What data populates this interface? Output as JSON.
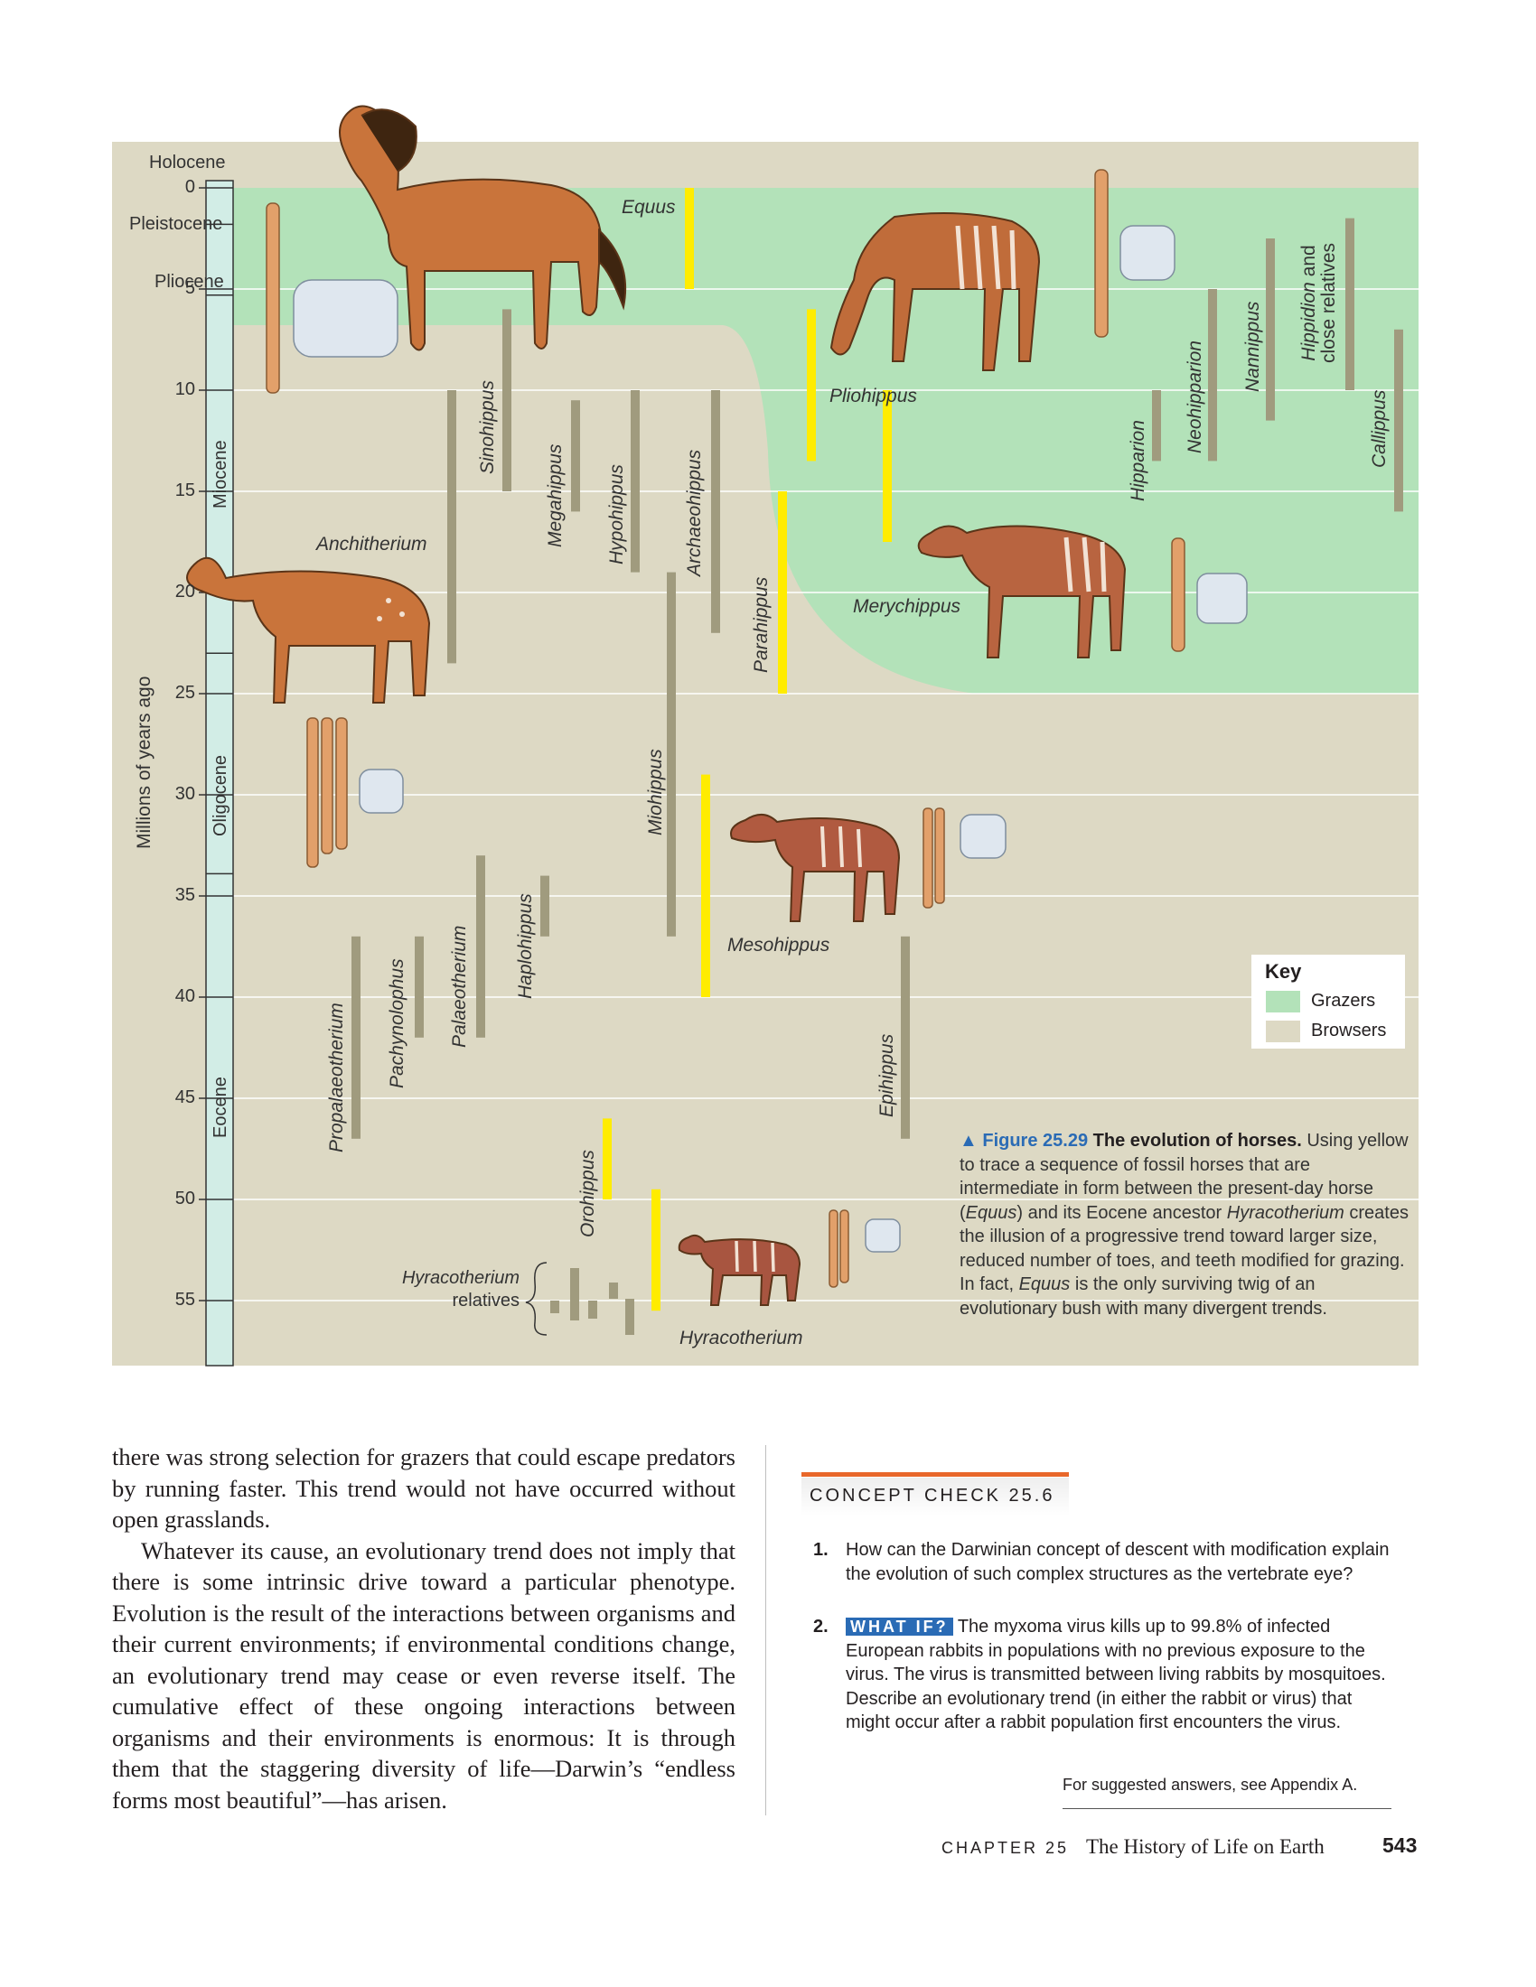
{
  "figure": {
    "y_axis_label": "Millions of years ago",
    "tick_values": [
      "0",
      "5",
      "10",
      "15",
      "20",
      "25",
      "30",
      "35",
      "40",
      "45",
      "50",
      "55"
    ],
    "epochs": {
      "holocene": "Holocene",
      "pleistocene": "Pleistocene",
      "pliocene": "Pliocene",
      "miocene": "Miocene",
      "oligocene": "Oligocene",
      "eocene": "Eocene"
    },
    "colors": {
      "grazers": "#b3e2b9",
      "browsers": "#ddd9c4",
      "trend": "#ffec00",
      "lineage": "#a09b7e",
      "timeline": "#d2ede6"
    },
    "genera": [
      {
        "name": "Equus",
        "start": 0,
        "end": 5,
        "yellow": true
      },
      {
        "name": "Pliohippus",
        "start": 6,
        "end": 13.5,
        "yellow": true
      },
      {
        "name": "Merychippus",
        "start": 10,
        "end": 17.5,
        "yellow": true
      },
      {
        "name": "Parahippus",
        "start": 15,
        "end": 25,
        "yellow": true
      },
      {
        "name": "Mesohippus",
        "start": 29,
        "end": 40,
        "yellow": true
      },
      {
        "name": "Orohippus",
        "start": 46,
        "end": 50,
        "yellow": true
      },
      {
        "name": "Hyracotherium",
        "start": 49.5,
        "end": 55.5,
        "yellow": true
      },
      {
        "name": "Anchitherium",
        "start": 10,
        "end": 23.5,
        "yellow": false
      },
      {
        "name": "Sinohippus",
        "start": 6,
        "end": 15,
        "yellow": false
      },
      {
        "name": "Megahippus",
        "start": 10.5,
        "end": 16,
        "yellow": false
      },
      {
        "name": "Hypohippus",
        "start": 10,
        "end": 19,
        "yellow": false
      },
      {
        "name": "Archaeohippus",
        "start": 10,
        "end": 22,
        "yellow": false
      },
      {
        "name": "Miohippus",
        "start": 19,
        "end": 37,
        "yellow": false
      },
      {
        "name": "Propalaeotherium",
        "start": 37,
        "end": 47,
        "yellow": false
      },
      {
        "name": "Pachynolophus",
        "start": 37,
        "end": 42,
        "yellow": false
      },
      {
        "name": "Palaeotherium",
        "start": 33,
        "end": 42,
        "yellow": false
      },
      {
        "name": "Haplohippus",
        "start": 34,
        "end": 37,
        "yellow": false
      },
      {
        "name": "Epihippus",
        "start": 37,
        "end": 47,
        "yellow": false
      },
      {
        "name": "Hipparion",
        "start": 10,
        "end": 13.5,
        "yellow": false
      },
      {
        "name": "Neohipparion",
        "start": 5,
        "end": 13.5,
        "yellow": false
      },
      {
        "name": "Nannippus",
        "start": 2.5,
        "end": 11.5,
        "yellow": false
      },
      {
        "name": "Hippidion and close relatives",
        "start": 1.5,
        "end": 10,
        "yellow": false
      },
      {
        "name": "Callippus",
        "start": 7,
        "end": 16,
        "yellow": false
      }
    ],
    "hyracotherium_relatives": "Hyracotherium relatives",
    "key": {
      "title": "Key",
      "grazers": "Grazers",
      "browsers": "Browsers"
    },
    "caption": {
      "figure_number": "▲ Figure 25.29",
      "title": "The evolution of horses.",
      "part1": "Using yellow to trace a sequence of fossil horses that are intermediate in form between the present-day horse (",
      "equus1": "Equus",
      "part2": ") and its Eocene ancestor ",
      "hyracotherium": "Hyracotherium",
      "part3": " creates the illusion of a progressive trend toward larger size, reduced number of toes, and teeth modified for grazing. In fact, ",
      "equus2": "Equus",
      "part4": " is the only surviving twig of an evolutionary bush with many divergent trends."
    }
  },
  "body": {
    "p1": "there was strong selection for grazers that could escape predators by running faster. This trend would not have occurred without open grasslands.",
    "p2": "Whatever its cause, an evolutionary trend does not imply that there is some intrinsic drive toward a particular phenotype. Evolution is the result of the interactions between organisms and their current environments; if environmental conditions change, an evolutionary trend may cease or even reverse itself. The cumulative effect of these ongoing interactions between organisms and their environments is enormous: It is through them that the staggering diversity of life—Darwin’s “endless forms most beautiful”—has arisen."
  },
  "concept_check": {
    "title": "CONCEPT CHECK 25.6",
    "q1_num": "1.",
    "q1": "How can the Darwinian concept of descent with modification explain the evolution of such complex structures as the vertebrate eye?",
    "q2_num": "2.",
    "q2_tag": "WHAT IF?",
    "q2": "The myxoma virus kills up to 99.8% of infected European rabbits in populations with no previous exposure to the virus. The virus is transmitted between living rabbits by mosquitoes. Describe an evolutionary trend (in either the rabbit or virus) that might occur after a rabbit population first encounters the virus.",
    "answers": "For suggested answers, see Appendix A."
  },
  "footer": {
    "chapter": "CHAPTER 25",
    "title": "The History of Life on Earth",
    "page": "543"
  }
}
